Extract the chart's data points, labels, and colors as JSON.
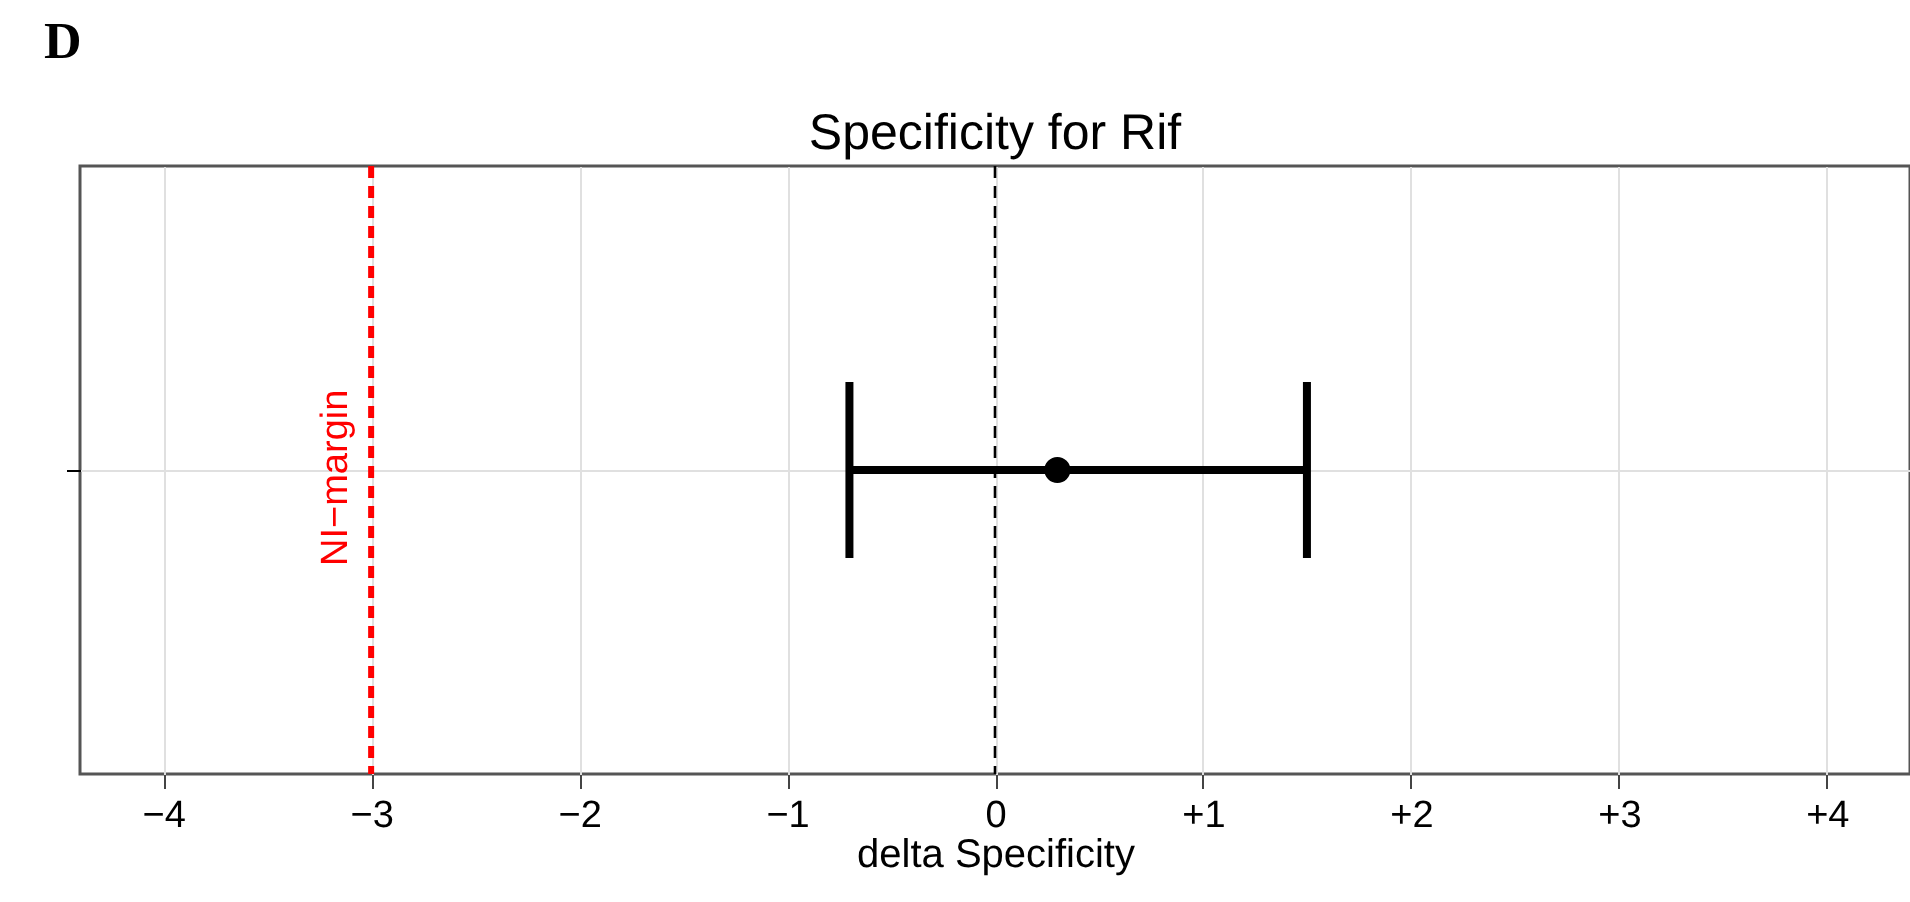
{
  "chart_data": {
    "type": "scatter",
    "title": "Specificity for Rif",
    "xlabel": "delta Specificity",
    "annotations": [
      "D"
    ],
    "orientation": "horizontal",
    "categories": [
      null
    ],
    "series": [
      {
        "color": "#000000",
        "values": [
          0.3
        ],
        "errors": [
          [
            -0.7,
            1.5
          ]
        ]
      }
    ],
    "xlim": [
      -4.4,
      4.4
    ],
    "xticks": [
      {
        "value": -4,
        "label": "−4"
      },
      {
        "value": -3,
        "label": "−3"
      },
      {
        "value": -2,
        "label": "−2"
      },
      {
        "value": -1,
        "label": "−1"
      },
      0,
      {
        "value": 1,
        "label": "+1"
      },
      {
        "value": 2,
        "label": "+2"
      },
      {
        "value": 3,
        "label": "+3"
      },
      {
        "value": 4,
        "label": "+4"
      }
    ],
    "ref_lines": [
      {
        "axis": "x",
        "value": -3,
        "label": "NI−margin",
        "color": "#ff0000",
        "line_style": "dashed"
      },
      {
        "axis": "x",
        "value": 0,
        "color": "#000000",
        "line_style": "dashed"
      }
    ],
    "grid": true,
    "marker": "circle",
    "tick_labels": "x"
  }
}
